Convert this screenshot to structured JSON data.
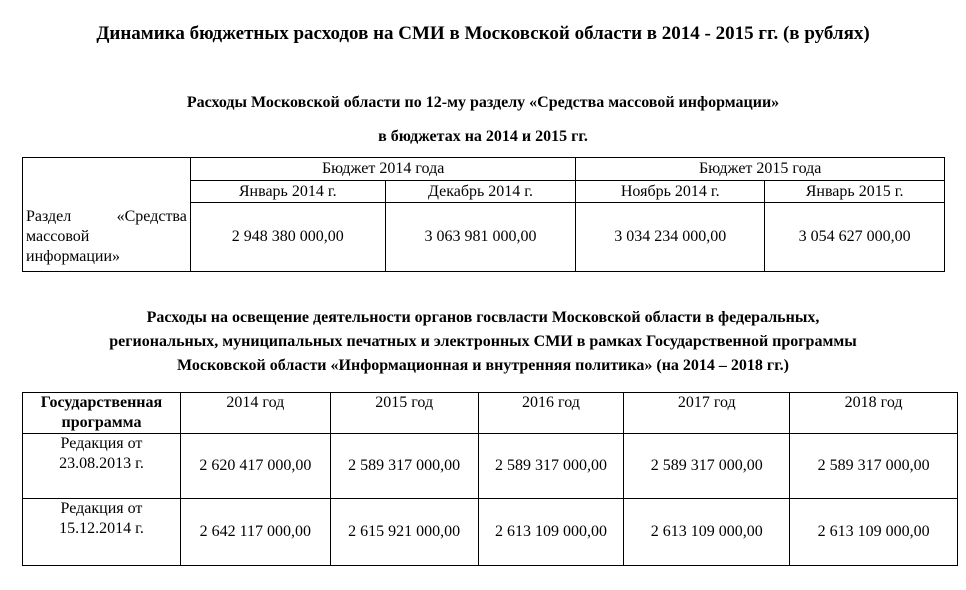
{
  "title": "Динамика бюджетных расходов на СМИ в Московской области в 2014 - 2015 гг. (в рублях)",
  "section1": {
    "heading_lines": [
      "Расходы Московской области по 12-му разделу «Средства массовой информации»",
      "в бюджетах на 2014 и 2015 гг."
    ],
    "groups": [
      "Бюджет 2014 года",
      "Бюджет 2015 года"
    ],
    "columns": [
      "Январь 2014 г.",
      "Декабрь 2014 г.",
      "Ноябрь 2014 г.",
      "Январь 2015 г."
    ],
    "row_label": "Раздел «Средства массовой информации»",
    "values": [
      "2 948 380 000,00",
      "3 063 981 000,00",
      "3 034 234 000,00",
      "3 054 627 000,00"
    ]
  },
  "section2": {
    "heading_lines": [
      "Расходы на освещение деятельности органов госвласти Московской области в федеральных,",
      "региональных, муниципальных печатных и электронных СМИ в рамках Государственной программы",
      "Московской области «Информационная и внутренняя политика» (на 2014 – 2018 гг.)"
    ],
    "header": [
      "Государственная программа",
      "2014 год",
      "2015 год",
      "2016 год",
      "2017 год",
      "2018 год"
    ],
    "rows": [
      {
        "label": "Редакция от 23.08.2013 г.",
        "values": [
          "2 620 417 000,00",
          "2 589 317 000,00",
          "2 589 317 000,00",
          "2 589 317 000,00",
          "2 589 317 000,00"
        ]
      },
      {
        "label": "Редакция от 15.12.2014 г.",
        "values": [
          "2 642 117 000,00",
          "2 615 921 000,00",
          "2 613 109 000,00",
          "2 613 109 000,00",
          "2 613 109 000,00"
        ]
      }
    ]
  }
}
